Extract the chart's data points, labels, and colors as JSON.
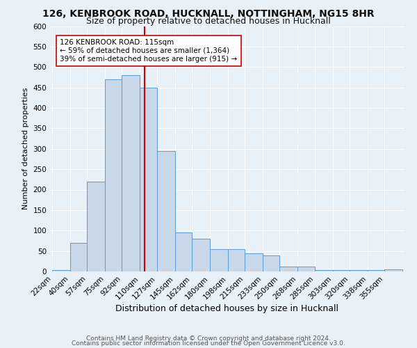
{
  "title1": "126, KENBROOK ROAD, HUCKNALL, NOTTINGHAM, NG15 8HR",
  "title2": "Size of property relative to detached houses in Hucknall",
  "xlabel": "Distribution of detached houses by size in Hucknall",
  "ylabel": "Number of detached properties",
  "footer1": "Contains HM Land Registry data © Crown copyright and database right 2024.",
  "footer2": "Contains public sector information licensed under the Open Government Licence v3.0.",
  "bar_edges": [
    22,
    40,
    57,
    75,
    92,
    110,
    127,
    145,
    162,
    180,
    198,
    215,
    233,
    250,
    268,
    285,
    303,
    320,
    338,
    355,
    373
  ],
  "bar_heights": [
    3,
    70,
    220,
    470,
    480,
    450,
    295,
    95,
    80,
    55,
    55,
    45,
    40,
    12,
    12,
    3,
    3,
    3,
    3,
    5
  ],
  "bar_color": "#c8d8e8",
  "bar_edge_color": "#5b9bd5",
  "vline_x": 115,
  "vline_color": "#cc0000",
  "annotation_text": "126 KENBROOK ROAD: 115sqm\n← 59% of detached houses are smaller (1,364)\n39% of semi-detached houses are larger (915) →",
  "annotation_box_color": "#ffffff",
  "annotation_box_edge": "#cc0000",
  "ylim": [
    0,
    600
  ],
  "yticks": [
    0,
    50,
    100,
    150,
    200,
    250,
    300,
    350,
    400,
    450,
    500,
    550,
    600
  ],
  "background_color": "#e8f0f8",
  "grid_color": "#ffffff",
  "title1_fontsize": 10,
  "title2_fontsize": 9,
  "xlabel_fontsize": 9,
  "ylabel_fontsize": 8,
  "tick_fontsize": 7.5,
  "annotation_fontsize": 7.5,
  "footer_fontsize": 6.5
}
